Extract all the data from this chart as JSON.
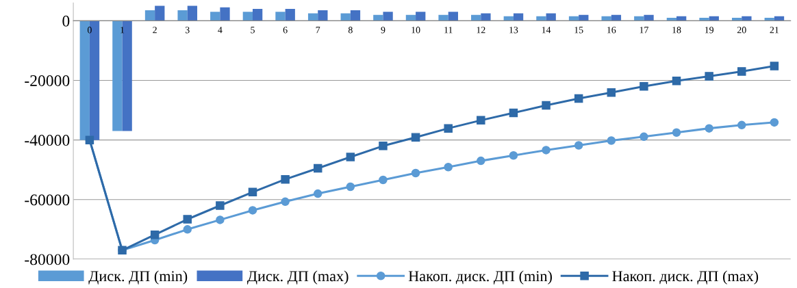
{
  "chart_data": {
    "type": "bar",
    "categories": [
      "0",
      "1",
      "2",
      "3",
      "4",
      "5",
      "6",
      "7",
      "8",
      "9",
      "10",
      "11",
      "12",
      "13",
      "14",
      "15",
      "16",
      "17",
      "18",
      "19",
      "20",
      "21"
    ],
    "ylim": [
      -80000,
      6000
    ],
    "yticks": [
      {
        "value": 0,
        "label": "0"
      },
      {
        "value": -20000,
        "label": "-20000"
      },
      {
        "value": -40000,
        "label": "-40000"
      },
      {
        "value": -60000,
        "label": "-60000"
      },
      {
        "value": -80000,
        "label": "-80000"
      }
    ],
    "grid": "y",
    "legend": "bottom",
    "series": [
      {
        "name": "Диск. ДП (min)",
        "color": "#5b9bd5",
        "values": [
          -40000,
          -37000,
          3500,
          3500,
          3000,
          3000,
          3000,
          2500,
          2500,
          2000,
          2000,
          2000,
          2000,
          1500,
          1500,
          1500,
          1500,
          1500,
          1000,
          1000,
          1000,
          1000
        ]
      },
      {
        "name": "Диск. ДП (max)",
        "color": "#4472c4",
        "values": [
          -40000,
          -37000,
          5000,
          5000,
          4500,
          4000,
          4000,
          3500,
          3500,
          3000,
          3000,
          3000,
          2500,
          2500,
          2500,
          2000,
          2000,
          2000,
          1500,
          1500,
          1500,
          1500
        ]
      },
      {
        "name": "Накоп. диск. ДП (min)",
        "type": "line",
        "marker": "circle",
        "color": "#5b9bd5",
        "values": [
          -40000,
          -77000,
          -73600,
          -70000,
          -66800,
          -63600,
          -60700,
          -58000,
          -55700,
          -53400,
          -51100,
          -49100,
          -47000,
          -45200,
          -43400,
          -41800,
          -40200,
          -38900,
          -37500,
          -36100,
          -35000,
          -34100
        ]
      },
      {
        "name": "Накоп. диск. ДП (max)",
        "type": "line",
        "marker": "square",
        "color": "#2e6aa8",
        "values": [
          -40000,
          -77000,
          -71800,
          -66600,
          -62000,
          -57500,
          -53200,
          -49500,
          -45700,
          -42000,
          -39100,
          -36100,
          -33400,
          -30900,
          -28400,
          -26100,
          -24100,
          -22000,
          -20200,
          -18600,
          -17000,
          -15200
        ]
      }
    ]
  }
}
